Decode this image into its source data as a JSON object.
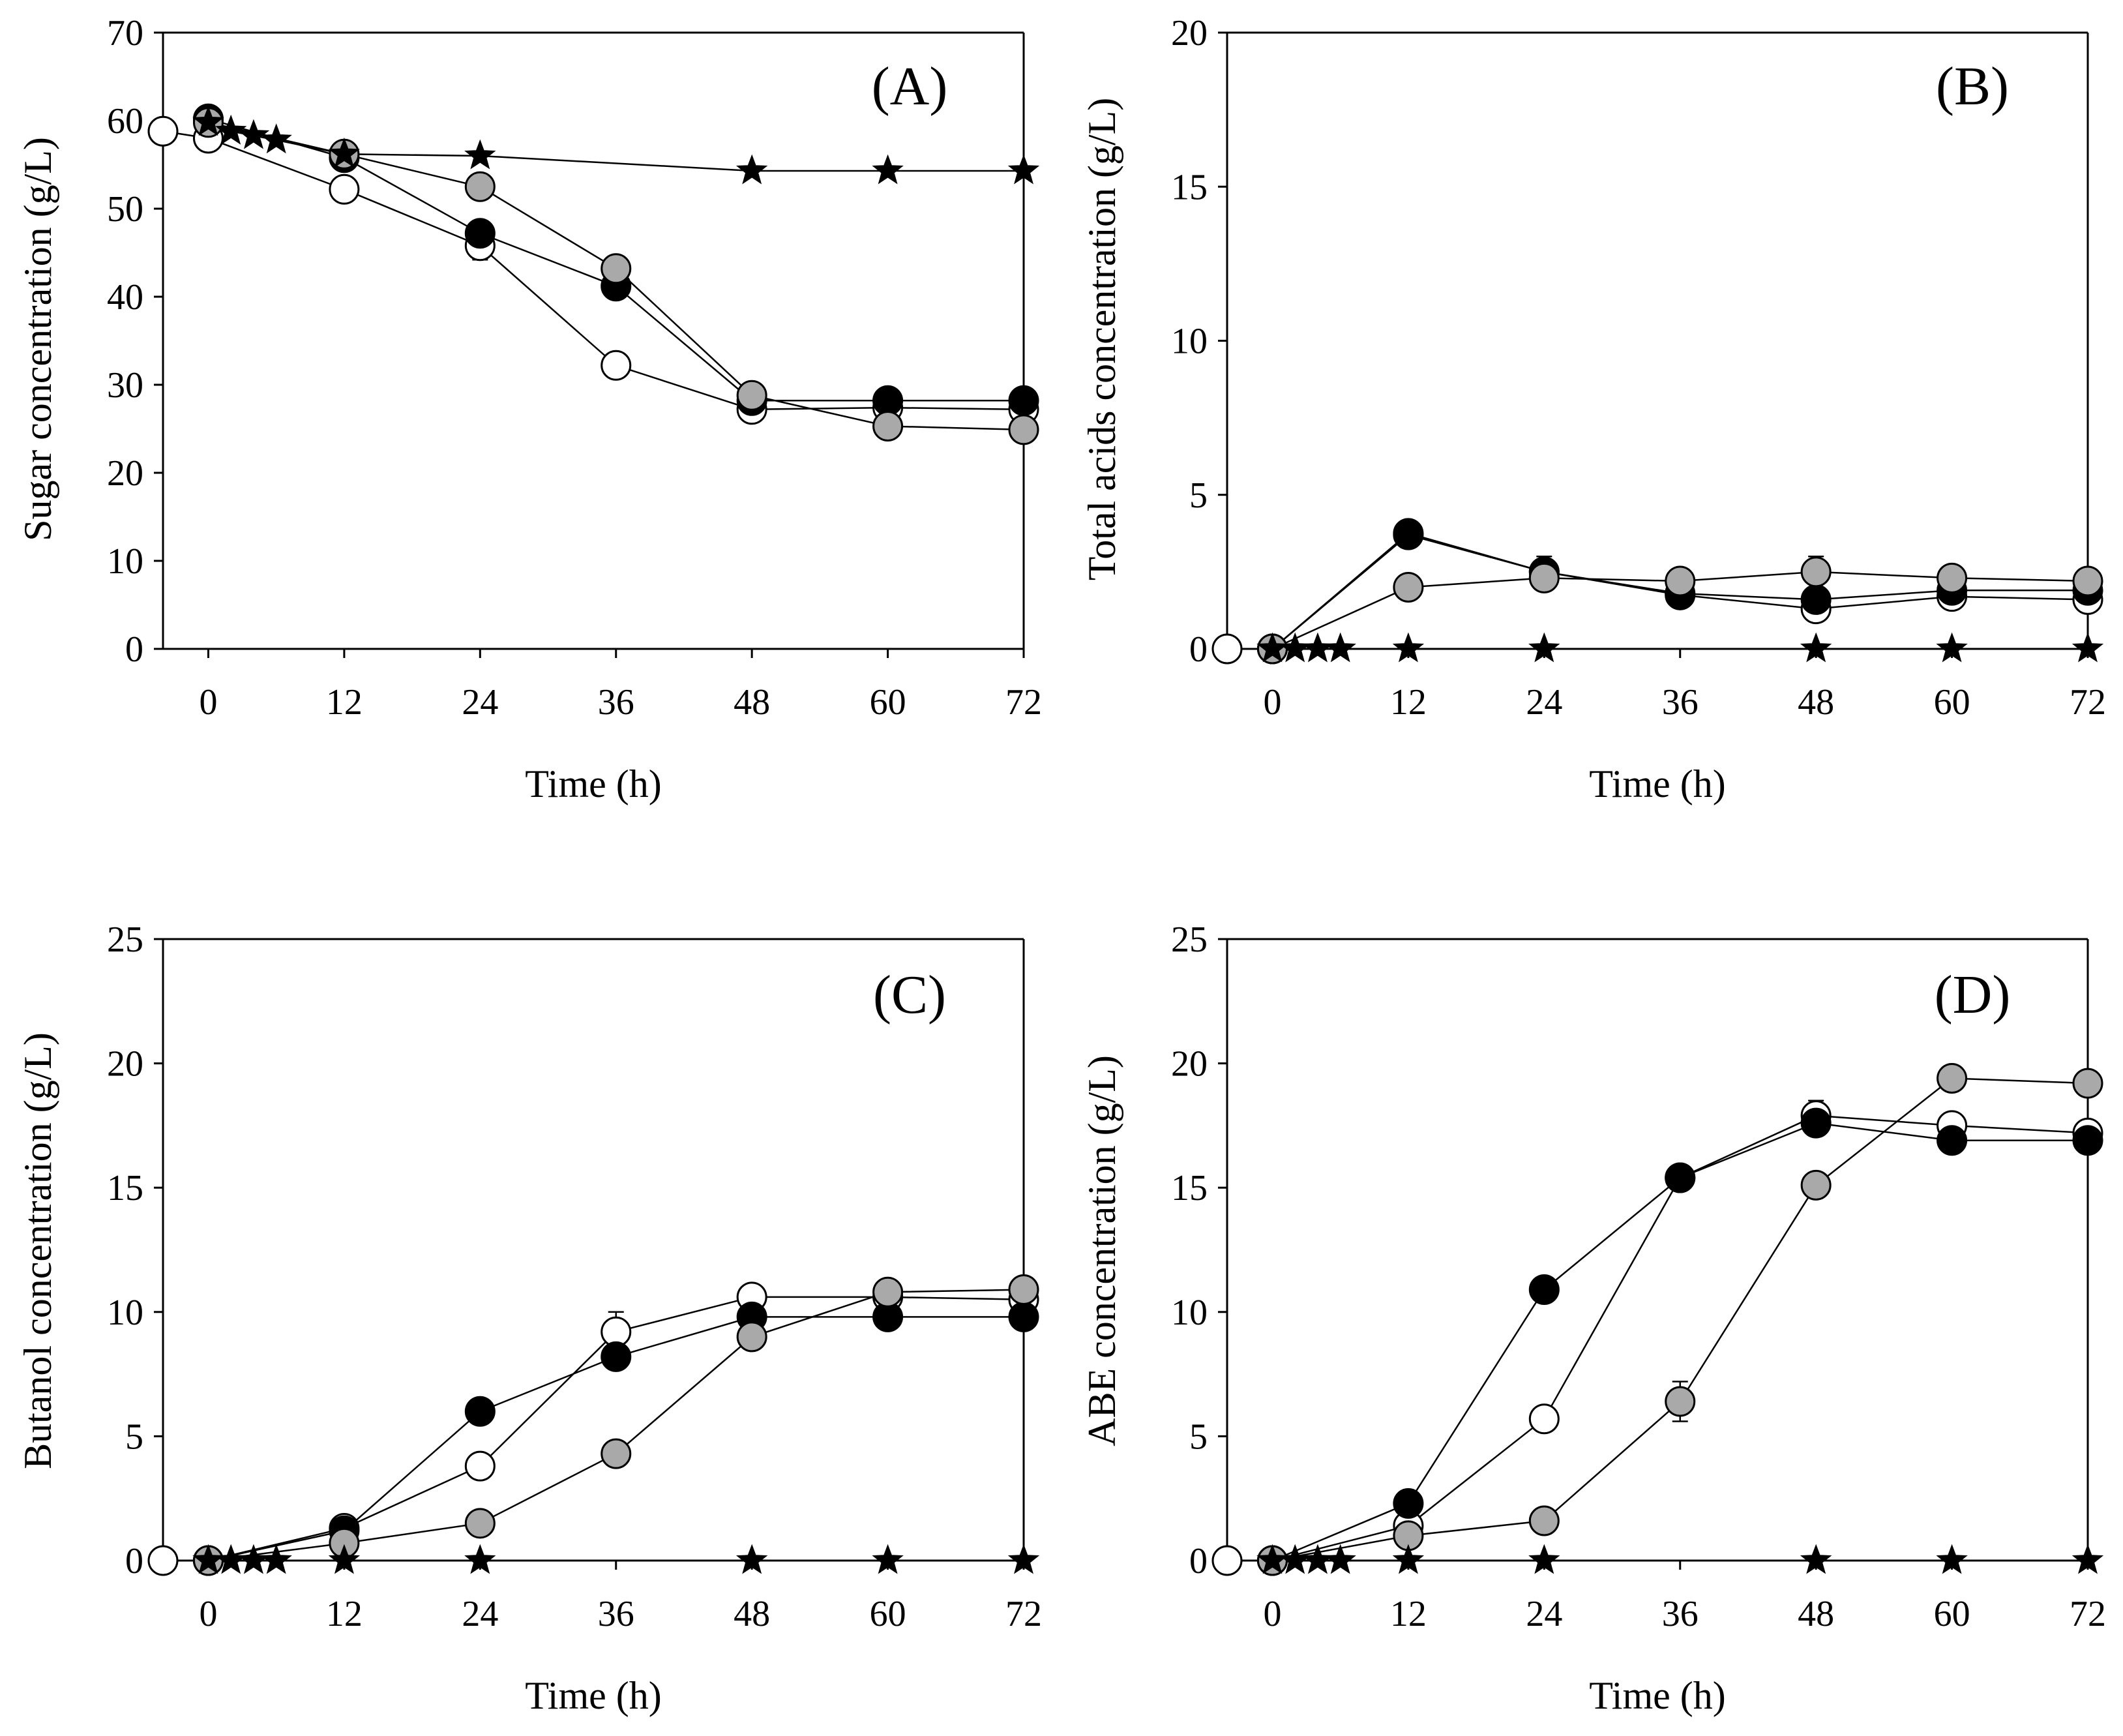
{
  "chart_data": [
    {
      "type": "line",
      "panel": "(A)",
      "title": "",
      "xlabel": "Time (h)",
      "ylabel": "Sugar concentration (g/L)",
      "xlim": [
        -4,
        72
      ],
      "ylim": [
        0,
        70
      ],
      "xticks": [
        0,
        12,
        24,
        36,
        48,
        60,
        72
      ],
      "yticks": [
        0,
        10,
        20,
        30,
        40,
        50,
        60,
        70
      ],
      "series": [
        {
          "name": "black-circle",
          "marker": "circle",
          "color": "#000000",
          "x": [
            0,
            12,
            24,
            36,
            48,
            60,
            72
          ],
          "y": [
            60.2,
            55.8,
            47.2,
            41.2,
            28.2,
            28.2,
            28.2
          ],
          "err": [
            0.6,
            0.6,
            1.2,
            1.2,
            0.6,
            0.6,
            0.5
          ]
        },
        {
          "name": "white-circle",
          "marker": "circle",
          "color": "#ffffff",
          "x": [
            -4,
            0,
            12,
            24,
            36,
            48,
            60,
            72
          ],
          "y": [
            58.8,
            58.0,
            52.2,
            45.8,
            32.2,
            27.2,
            27.4,
            27.2
          ],
          "err": [
            0,
            0.6,
            0.6,
            1.6,
            0.6,
            0.6,
            0.6,
            0.6
          ]
        },
        {
          "name": "gray-circle",
          "marker": "circle",
          "color": "#a9a9a9",
          "x": [
            0,
            12,
            24,
            36,
            48,
            60,
            72
          ],
          "y": [
            59.8,
            56.2,
            52.5,
            43.2,
            28.8,
            25.3,
            24.9
          ],
          "err": [
            0.6,
            0.6,
            0.8,
            0.8,
            0.6,
            0.6,
            0.6
          ]
        },
        {
          "name": "black-star",
          "marker": "star",
          "color": "#000000",
          "x": [
            0,
            2,
            4,
            6,
            12,
            24,
            48,
            60,
            72
          ],
          "y": [
            59.8,
            58.8,
            58.3,
            57.8,
            56.2,
            56.0,
            54.3,
            54.3,
            54.3
          ],
          "err": [
            0,
            0,
            0,
            0,
            0,
            0,
            0,
            0,
            0
          ]
        }
      ]
    },
    {
      "type": "line",
      "panel": "(B)",
      "title": "",
      "xlabel": "Time (h)",
      "ylabel": "Total acids concentration (g/L)",
      "xlim": [
        -4,
        72
      ],
      "ylim": [
        0,
        20
      ],
      "xticks": [
        0,
        12,
        24,
        36,
        48,
        60,
        72
      ],
      "yticks": [
        0,
        5,
        10,
        15,
        20
      ],
      "series": [
        {
          "name": "black-circle",
          "marker": "circle",
          "color": "#000000",
          "x": [
            0,
            12,
            24,
            36,
            48,
            60,
            72
          ],
          "y": [
            0,
            3.7,
            2.5,
            1.8,
            1.6,
            1.9,
            1.9
          ],
          "err": [
            0,
            0.15,
            0.2,
            0.1,
            0.1,
            0.1,
            0.1
          ]
        },
        {
          "name": "white-circle",
          "marker": "circle",
          "color": "#ffffff",
          "x": [
            -4,
            0,
            12,
            24,
            36,
            48,
            60,
            72
          ],
          "y": [
            0,
            0,
            3.75,
            2.5,
            1.75,
            1.3,
            1.7,
            1.6
          ],
          "err": [
            0,
            0,
            0.15,
            0.5,
            0.1,
            0.2,
            0.1,
            0.1
          ]
        },
        {
          "name": "gray-circle",
          "marker": "circle",
          "color": "#a9a9a9",
          "x": [
            0,
            12,
            24,
            36,
            48,
            60,
            72
          ],
          "y": [
            0,
            2.0,
            2.3,
            2.2,
            2.5,
            2.3,
            2.2
          ],
          "err": [
            0,
            0.1,
            0.3,
            0.1,
            0.5,
            0.1,
            0.1
          ]
        },
        {
          "name": "black-star",
          "marker": "star",
          "color": "#000000",
          "x": [
            0,
            2,
            4,
            6,
            12,
            24,
            48,
            60,
            72
          ],
          "y": [
            0,
            0,
            0,
            0,
            0,
            0,
            0,
            0,
            0
          ],
          "err": [
            0,
            0,
            0,
            0,
            0,
            0,
            0,
            0,
            0
          ]
        }
      ]
    },
    {
      "type": "line",
      "panel": "(C)",
      "title": "",
      "xlabel": "Time (h)",
      "ylabel": "Butanol concentration (g/L)",
      "xlim": [
        -4,
        72
      ],
      "ylim": [
        0,
        25
      ],
      "xticks": [
        0,
        12,
        24,
        36,
        48,
        60,
        72
      ],
      "yticks": [
        0,
        5,
        10,
        15,
        20,
        25
      ],
      "series": [
        {
          "name": "black-circle",
          "marker": "circle",
          "color": "#000000",
          "x": [
            0,
            12,
            24,
            36,
            48,
            60,
            72
          ],
          "y": [
            0,
            1.2,
            6.0,
            8.2,
            9.8,
            9.8,
            9.8
          ],
          "err": [
            0,
            0.1,
            0.2,
            0.4,
            0.3,
            0.2,
            0.2
          ]
        },
        {
          "name": "white-circle",
          "marker": "circle",
          "color": "#ffffff",
          "x": [
            -4,
            0,
            12,
            24,
            36,
            48,
            60,
            72
          ],
          "y": [
            0,
            0,
            1.3,
            3.8,
            9.2,
            10.6,
            10.6,
            10.5
          ],
          "err": [
            0,
            0,
            0.1,
            0.2,
            0.8,
            0.3,
            0.3,
            0.3
          ]
        },
        {
          "name": "gray-circle",
          "marker": "circle",
          "color": "#a9a9a9",
          "x": [
            0,
            12,
            24,
            36,
            48,
            60,
            72
          ],
          "y": [
            0,
            0.7,
            1.5,
            4.3,
            9.0,
            10.8,
            10.9
          ],
          "err": [
            0,
            0.1,
            0.1,
            0.2,
            0.3,
            0.2,
            0.2
          ]
        },
        {
          "name": "black-star",
          "marker": "star",
          "color": "#000000",
          "x": [
            0,
            2,
            4,
            6,
            12,
            24,
            48,
            60,
            72
          ],
          "y": [
            0,
            0,
            0,
            0,
            0,
            0,
            0,
            0,
            0
          ],
          "err": [
            0,
            0,
            0,
            0,
            0,
            0,
            0,
            0,
            0
          ]
        }
      ]
    },
    {
      "type": "line",
      "panel": "(D)",
      "title": "",
      "xlabel": "Time (h)",
      "ylabel": "ABE concentration (g/L)",
      "xlim": [
        -4,
        72
      ],
      "ylim": [
        0,
        25
      ],
      "xticks": [
        0,
        12,
        24,
        36,
        48,
        60,
        72
      ],
      "yticks": [
        0,
        5,
        10,
        15,
        20,
        25
      ],
      "series": [
        {
          "name": "black-circle",
          "marker": "circle",
          "color": "#000000",
          "x": [
            0,
            12,
            24,
            36,
            48,
            60,
            72
          ],
          "y": [
            0,
            2.3,
            10.9,
            15.4,
            17.6,
            16.9,
            16.9
          ],
          "err": [
            0,
            0.2,
            0.3,
            0.3,
            0.5,
            0.5,
            0.5
          ]
        },
        {
          "name": "white-circle",
          "marker": "circle",
          "color": "#ffffff",
          "x": [
            -4,
            0,
            12,
            24,
            36,
            48,
            60,
            72
          ],
          "y": [
            0,
            0,
            1.4,
            5.7,
            15.4,
            17.9,
            17.5,
            17.2
          ],
          "err": [
            0,
            0,
            0.2,
            0.3,
            0.3,
            0.6,
            0.4,
            0.4
          ]
        },
        {
          "name": "gray-circle",
          "marker": "circle",
          "color": "#a9a9a9",
          "x": [
            0,
            12,
            24,
            36,
            48,
            60,
            72
          ],
          "y": [
            0,
            1.0,
            1.6,
            6.4,
            15.1,
            19.4,
            19.2
          ],
          "err": [
            0,
            0.2,
            0.2,
            0.8,
            0.3,
            0.3,
            0.3
          ]
        },
        {
          "name": "black-star",
          "marker": "star",
          "color": "#000000",
          "x": [
            0,
            2,
            4,
            6,
            12,
            24,
            48,
            60,
            72
          ],
          "y": [
            0,
            0,
            0,
            0,
            0,
            0,
            0,
            0,
            0
          ],
          "err": [
            0,
            0,
            0,
            0,
            0,
            0,
            0,
            0,
            0
          ]
        }
      ]
    }
  ]
}
